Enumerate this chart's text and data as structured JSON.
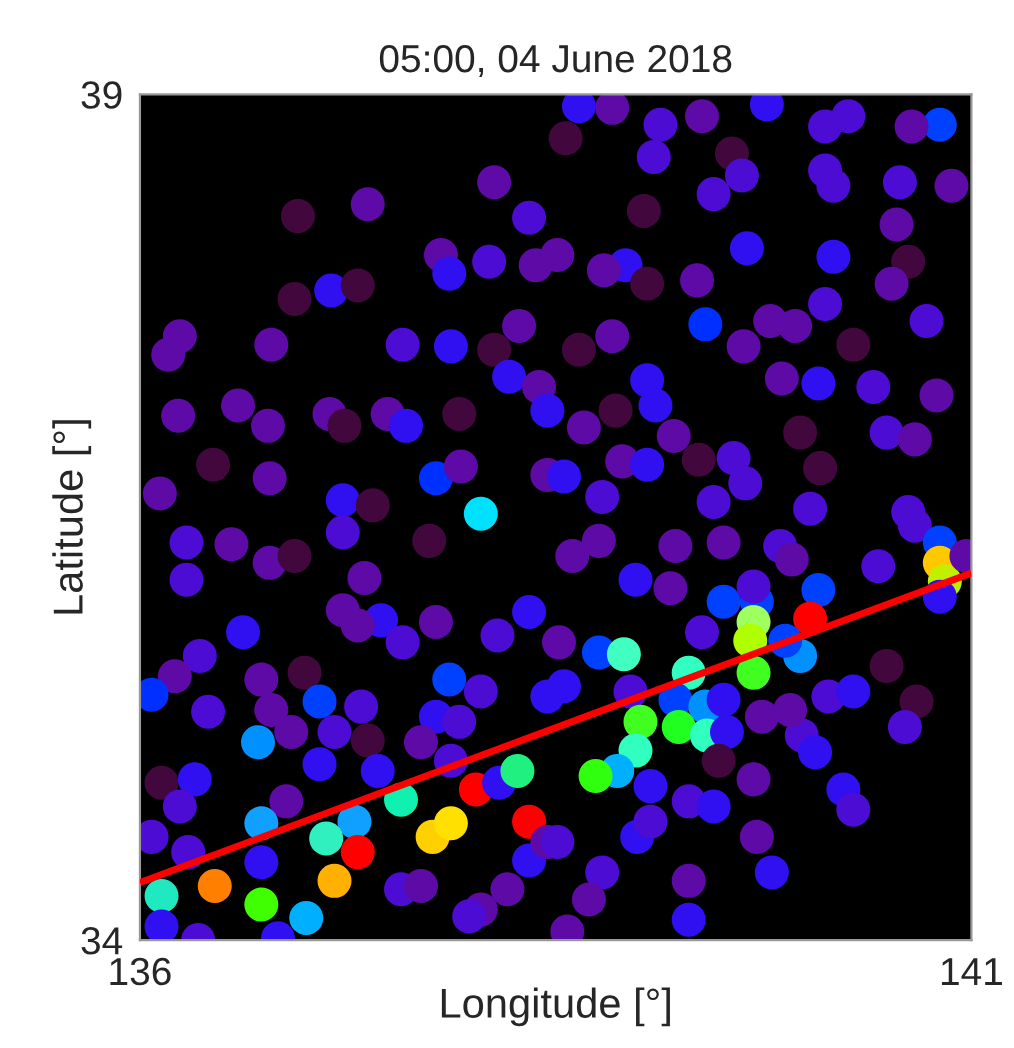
{
  "chart_data": {
    "type": "scatter",
    "title": "05:00, 04 June 2018",
    "xlabel": "Longitude [°]",
    "ylabel": "Latitude [°]",
    "xlim": [
      136,
      141
    ],
    "ylim": [
      34,
      39
    ],
    "xticks": [
      136,
      141
    ],
    "yticks": [
      34,
      39
    ],
    "grid": false,
    "legend": false,
    "marker": "circle",
    "series": [
      {
        "type": "scatter",
        "x": [
          137.37,
          136.95,
          138.13,
          138.34,
          137.81,
          137.86,
          138.1,
          138.38,
          137.15,
          137.31,
          136.93,
          136.24,
          136.17,
          136.79,
          137.58,
          137.87,
          138.28,
          138.13,
          138.22,
          138.4,
          138.45,
          136.23,
          136.59,
          136.77,
          137.14,
          137.23,
          137.49,
          137.6,
          137.92,
          136.44,
          136.78,
          136.12,
          137.22,
          137.4,
          137.78,
          137.93,
          138.05,
          138.45,
          138.64,
          138.84,
          139.13,
          139.38,
          139.77,
          140.12,
          140.26,
          140.81,
          140.64,
          138.56,
          139.09,
          139.56,
          139.45,
          139.62,
          140.12,
          140.17,
          140.57,
          140.88,
          139.03,
          140.55,
          138.51,
          138.92,
          138.79,
          139.05,
          139.65,
          140.17,
          140.62,
          140.52,
          139.35,
          139.4,
          139.79,
          139.94,
          140.12,
          140.73,
          138.64,
          138.84,
          139.63,
          140.29,
          139.05,
          139.1,
          138.86,
          139.86,
          140.08,
          140.41,
          140.79,
          138.67,
          139.21,
          139.97,
          140.49,
          140.66,
          138.55,
          138.9,
          139.05,
          139.36,
          139.57,
          139.64,
          140.09,
          138.78,
          139.45,
          140.03,
          140.62,
          136.28,
          136.55,
          136.78,
          136.93,
          137.22,
          137.74,
          136.28,
          137.35,
          137.45,
          137.31,
          137.22,
          136.62,
          137.58,
          137.78,
          138.15,
          138.34,
          136.36,
          136.21,
          136.07,
          136.73,
          136.99,
          136.41,
          136.79,
          137.08,
          137.33,
          137.86,
          137.78,
          138.05,
          137.92,
          138.45,
          136.71,
          136.91,
          137.17,
          137.37,
          137.69,
          137.08,
          137.43,
          137.87,
          136.13,
          136.33,
          136.24,
          136.88,
          137.57,
          138.02,
          138.16,
          138.27,
          138.34,
          136.73,
          137.29,
          137.12,
          137.76,
          137.87,
          137.31,
          136.07,
          136.29,
          136.73,
          137.17,
          138.34,
          138.45,
          136.45,
          136.13,
          136.73,
          137.0,
          137.57,
          137.69,
          138.05,
          138.21,
          137.98,
          136.13,
          136.35,
          136.83,
          138.6,
          138.76,
          138.98,
          139.22,
          139.51,
          139.85,
          139.92,
          139.19,
          140.44,
          140.66,
          140.81,
          140.81,
          140.84,
          140.81,
          140.97,
          139.51,
          139.71,
          139.69,
          140.08,
          140.03,
          139.69,
          139.67,
          139.97,
          139.88,
          139.38,
          138.52,
          138.76,
          138.91,
          139.3,
          139.69,
          138.55,
          138.95,
          139.22,
          139.4,
          139.51,
          140.14,
          140.29,
          140.49,
          140.67,
          139.74,
          139.01,
          139.24,
          139.41,
          139.53,
          139.98,
          140.06,
          140.6,
          139.91,
          138.98,
          138.87,
          138.74,
          139.07,
          139.48,
          139.69,
          139.3,
          139.45,
          140.23,
          140.29,
          138.51,
          138.99,
          139.07,
          139.71,
          138.78,
          138.7,
          139.3,
          139.8,
          139.3,
          138.57
        ],
        "values": [
          38.35,
          38.28,
          38.48,
          38.27,
          38.05,
          37.94,
          38.01,
          37.99,
          37.84,
          37.87,
          37.79,
          37.57,
          37.46,
          37.52,
          37.52,
          37.51,
          37.63,
          37.49,
          37.33,
          37.27,
          37.13,
          37.1,
          37.16,
          37.04,
          37.11,
          37.04,
          37.11,
          37.04,
          37.11,
          36.81,
          36.73,
          36.64,
          36.6,
          36.57,
          36.73,
          36.8,
          36.52,
          36.75,
          38.93,
          38.92,
          38.82,
          38.87,
          38.94,
          38.81,
          38.87,
          38.82,
          38.81,
          38.74,
          38.63,
          38.65,
          38.41,
          38.52,
          38.55,
          38.46,
          38.48,
          38.46,
          38.31,
          38.23,
          38.05,
          37.99,
          37.96,
          37.88,
          38.09,
          38.04,
          38.01,
          37.88,
          37.9,
          37.64,
          37.66,
          37.63,
          37.76,
          37.66,
          37.49,
          37.57,
          37.51,
          37.52,
          37.31,
          37.16,
          37.13,
          37.32,
          37.29,
          37.27,
          37.22,
          37.03,
          36.98,
          37.0,
          37.0,
          36.96,
          36.74,
          36.83,
          36.81,
          36.84,
          36.85,
          36.7,
          36.79,
          36.62,
          36.59,
          36.55,
          36.53,
          36.35,
          36.34,
          36.23,
          36.27,
          36.41,
          36.36,
          36.13,
          36.14,
          35.89,
          35.86,
          35.95,
          35.82,
          35.76,
          35.88,
          35.8,
          35.94,
          35.68,
          35.56,
          35.45,
          35.54,
          35.58,
          35.35,
          35.36,
          35.41,
          35.38,
          35.54,
          35.32,
          35.47,
          35.29,
          35.44,
          35.17,
          35.23,
          35.23,
          35.18,
          35.17,
          35.04,
          35.0,
          35.06,
          34.93,
          34.95,
          34.79,
          34.82,
          34.83,
          34.89,
          34.93,
          35.0,
          34.7,
          34.69,
          34.7,
          34.6,
          34.61,
          34.69,
          34.52,
          34.61,
          34.52,
          34.46,
          34.35,
          34.47,
          34.58,
          34.32,
          34.26,
          34.21,
          34.13,
          34.3,
          34.32,
          34.18,
          34.3,
          34.14,
          34.08,
          34.0,
          34.01,
          36.27,
          36.36,
          36.13,
          36.33,
          36.35,
          36.33,
          36.25,
          36.08,
          36.21,
          36.45,
          36.35,
          36.23,
          36.12,
          36.03,
          36.27,
          36.0,
          36.0,
          36.09,
          36.07,
          35.9,
          35.88,
          35.77,
          35.68,
          35.77,
          35.82,
          35.76,
          35.7,
          35.69,
          35.58,
          35.58,
          35.5,
          35.47,
          35.42,
          35.38,
          35.42,
          35.44,
          35.47,
          35.62,
          35.41,
          35.32,
          35.29,
          35.26,
          35.21,
          35.23,
          35.21,
          35.11,
          35.26,
          35.36,
          35.12,
          35.0,
          34.97,
          34.91,
          35.06,
          34.95,
          34.82,
          34.79,
          34.89,
          34.77,
          34.58,
          34.61,
          34.7,
          34.61,
          34.4,
          34.24,
          34.35,
          34.4,
          34.12,
          34.05
        ],
        "colors": [
          "#5e0aa6",
          "#42083e",
          "#5e0aa6",
          "#4c0cd4",
          "#5e0aa6",
          "#3010f0",
          "#4c0cd4",
          "#5e0aa6",
          "#3010f0",
          "#42083e",
          "#42083e",
          "#5e0aa6",
          "#5e0aa6",
          "#5e0aa6",
          "#4c0cd4",
          "#3010f0",
          "#5e0aa6",
          "#42083e",
          "#3010f0",
          "#5e0aa6",
          "#3010f0",
          "#5e0aa6",
          "#5e0aa6",
          "#5e0aa6",
          "#5e0aa6",
          "#42083e",
          "#5e0aa6",
          "#3010f0",
          "#42083e",
          "#42083e",
          "#5e0aa6",
          "#5e0aa6",
          "#3010f0",
          "#42083e",
          "#0030ff",
          "#5e0aa6",
          "#00e0ff",
          "#5e0aa6",
          "#3010f0",
          "#5e0aa6",
          "#4c0cd4",
          "#5e0aa6",
          "#3010f0",
          "#4c0cd4",
          "#4c0cd4",
          "#0040ff",
          "#5e0aa6",
          "#42083e",
          "#4c0cd4",
          "#42083e",
          "#4c0cd4",
          "#4c0cd4",
          "#4c0cd4",
          "#4c0cd4",
          "#4c0cd4",
          "#5e0aa6",
          "#42083e",
          "#5e0aa6",
          "#5e0aa6",
          "#3010f0",
          "#5e0aa6",
          "#42083e",
          "#3010f0",
          "#3010f0",
          "#42083e",
          "#5e0aa6",
          "#5e0aa6",
          "#0030ff",
          "#5e0aa6",
          "#5e0aa6",
          "#4c0cd4",
          "#4c0cd4",
          "#42083e",
          "#5e0aa6",
          "#5e0aa6",
          "#42083e",
          "#3010f0",
          "#3010f0",
          "#42083e",
          "#5e0aa6",
          "#3010f0",
          "#4c0cd4",
          "#5e0aa6",
          "#5e0aa6",
          "#5e0aa6",
          "#42083e",
          "#4c0cd4",
          "#5e0aa6",
          "#3010f0",
          "#5e0aa6",
          "#3010f0",
          "#42083e",
          "#4c0cd4",
          "#4c0cd4",
          "#42083e",
          "#4c0cd4",
          "#4c0cd4",
          "#4c0cd4",
          "#4c0cd4",
          "#4c0cd4",
          "#5e0aa6",
          "#5e0aa6",
          "#42083e",
          "#4c0cd4",
          "#42083e",
          "#4c0cd4",
          "#5e0aa6",
          "#3010f0",
          "#5e0aa6",
          "#5e0aa6",
          "#3010f0",
          "#4c0cd4",
          "#5e0aa6",
          "#4c0cd4",
          "#3010f0",
          "#4c0cd4",
          "#5e0aa6",
          "#0030ff",
          "#5e0aa6",
          "#42083e",
          "#4c0cd4",
          "#5e0aa6",
          "#0040ff",
          "#4c0cd4",
          "#0040ff",
          "#3010f0",
          "#4c0cd4",
          "#4c0cd4",
          "#3010f0",
          "#0090ff",
          "#5e0aa6",
          "#4c0cd4",
          "#42083e",
          "#5e0aa6",
          "#3010f0",
          "#3010f0",
          "#4c0cd4",
          "#42083e",
          "#3010f0",
          "#4c0cd4",
          "#5e0aa6",
          "#10f0b0",
          "#ff0000",
          "#3010f0",
          "#20f080",
          "#ff0000",
          "#10a0ff",
          "#10a0ff",
          "#30f0c0",
          "#ffd000",
          "#ffe000",
          "#ff0000",
          "#4c0cd4",
          "#4c0cd4",
          "#3010f0",
          "#ffb000",
          "#3010f0",
          "#5e0aa6",
          "#ff8000",
          "#20e8c0",
          "#40ff00",
          "#00b0ff",
          "#4c0cd4",
          "#5e0aa6",
          "#5e0aa6",
          "#5e0aa6",
          "#4c0cd4",
          "#3010f0",
          "#4c0cd4",
          "#3010f0",
          "#5e0aa6",
          "#5e0aa6",
          "#3010f0",
          "#5e0aa6",
          "#5e0aa6",
          "#4c0cd4",
          "#5e0aa6",
          "#5e0aa6",
          "#4c0cd4",
          "#4c0cd4",
          "#0040ff",
          "#ffc800",
          "#c0f000",
          "#3010f0",
          "#5e0aa6",
          "#0040ff",
          "#0040ff",
          "#4c0cd4",
          "#0040ff",
          "#ff0000",
          "#a0ff60",
          "#b0ff00",
          "#0090ff",
          "#0040ff",
          "#4c0cd4",
          "#5e0aa6",
          "#0040ff",
          "#40ffc0",
          "#30ffc0",
          "#40ff20",
          "#3010f0",
          "#4c0cd4",
          "#0040ff",
          "#0090ff",
          "#3010f0",
          "#4c0cd4",
          "#3010f0",
          "#42083e",
          "#42083e",
          "#5e0aa6",
          "#40ff20",
          "#20ff20",
          "#30ffc0",
          "#3010f0",
          "#4c0cd4",
          "#3010f0",
          "#4c0cd4",
          "#5e0aa6",
          "#30ffc0",
          "#00b0ff",
          "#30ff10",
          "#3010f0",
          "#42083e",
          "#5e0aa6",
          "#4c0cd4",
          "#3010f0",
          "#3010f0",
          "#4c0cd4",
          "#4c0cd4",
          "#3010f0",
          "#4c0cd4",
          "#5e0aa6",
          "#4c0cd4",
          "#5e0aa6",
          "#5e0aa6",
          "#3010f0",
          "#3010f0",
          "#5e0aa6"
        ]
      },
      {
        "type": "line",
        "x": [
          136,
          141
        ],
        "values": [
          34.34,
          36.17
        ],
        "color": "#ff0000",
        "line_style": "solid",
        "marker": "none"
      }
    ]
  }
}
